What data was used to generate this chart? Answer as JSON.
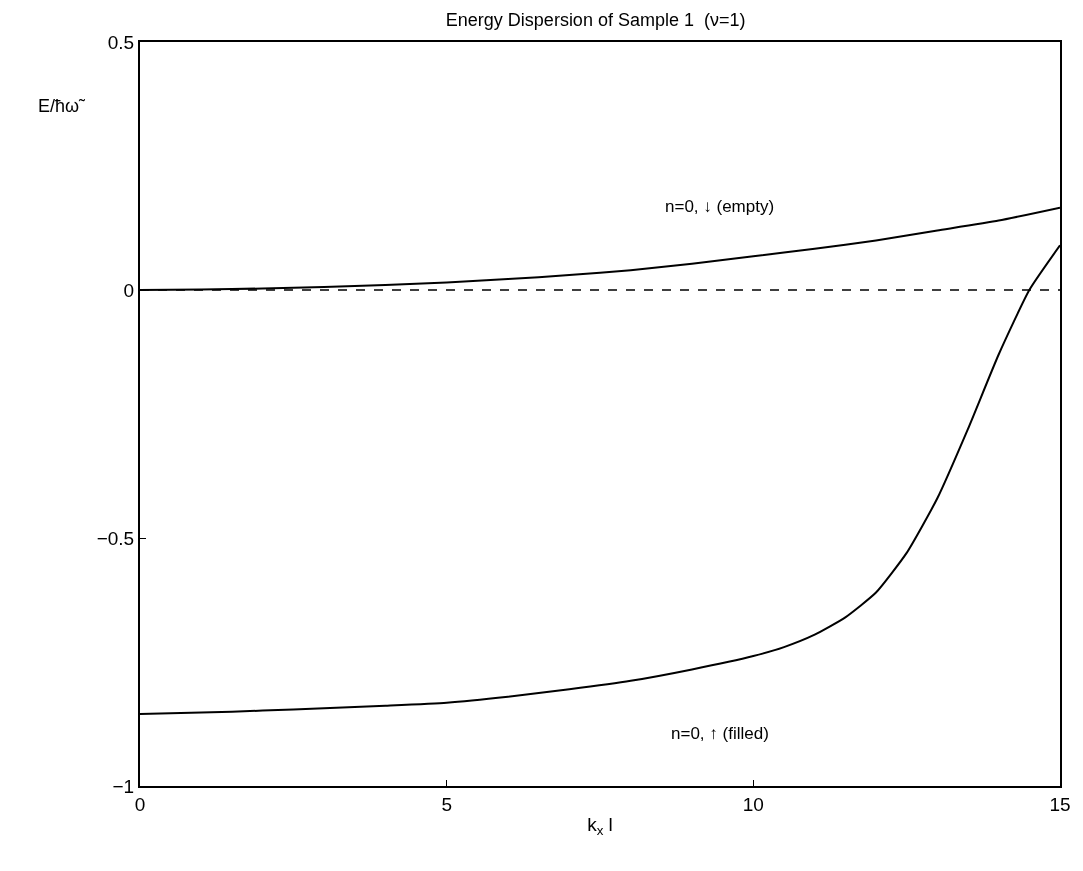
{
  "chart_data": {
    "type": "line",
    "title": "Energy Dispersion of Sample 1  (ν=1)",
    "xlabel": "k$_{x}$ l",
    "ylabel": "E/ħω̃",
    "series": [
      {
        "color": "#000000",
        "x": [
          0,
          1,
          2,
          3,
          4,
          5,
          6,
          7,
          8,
          9,
          10,
          11,
          12,
          13,
          14,
          15
        ],
        "values": [
          0,
          0.001,
          0.003,
          0.006,
          0.01,
          0.015,
          0.022,
          0.03,
          0.04,
          0.053,
          0.068,
          0.083,
          0.1,
          0.12,
          0.14,
          0.166
        ]
      },
      {
        "color": "#000000",
        "x": [
          0,
          1,
          2,
          3,
          4,
          5,
          6,
          7,
          8,
          9,
          10,
          10.5,
          11,
          11.5,
          12,
          12.5,
          13,
          13.5,
          14,
          14.5,
          15
        ],
        "values": [
          -0.855,
          -0.852,
          -0.848,
          -0.843,
          -0.838,
          -0.832,
          -0.82,
          -0.805,
          -0.788,
          -0.765,
          -0.738,
          -0.72,
          -0.695,
          -0.66,
          -0.61,
          -0.53,
          -0.42,
          -0.28,
          -0.13,
          0.0,
          0.09
        ]
      }
    ],
    "annotations": [
      "n=0, ↓ (empty)",
      "n=0, ↑ (filled)"
    ],
    "ref_lines": [
      {
        "axis": "y",
        "value": 0,
        "color": "#000000",
        "line_style": "dashed"
      }
    ],
    "xlim": [
      0,
      15
    ],
    "xticks": [
      0,
      5,
      10,
      15
    ],
    "ylim": [
      -1,
      0.5
    ],
    "yticks": [
      -1,
      -0.5,
      0,
      0.5
    ],
    "marker": "none",
    "line_style": "solid"
  }
}
